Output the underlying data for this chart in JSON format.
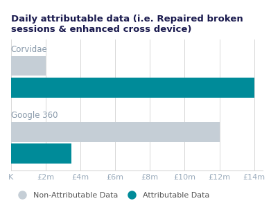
{
  "title": "Daily attributable data (i.e. Repaired broken\nsessions & enhanced cross device)",
  "title_fontsize": 9.5,
  "title_color": "#1a1a4e",
  "groups": [
    "Corvidae",
    "Google 360"
  ],
  "non_attributable": [
    2000000,
    12000000
  ],
  "attributable": [
    14000000,
    3500000
  ],
  "bar_color_non": "#c5ced6",
  "bar_color_attr": "#008b99",
  "xticks": [
    0,
    2000000,
    4000000,
    6000000,
    8000000,
    10000000,
    12000000,
    14000000
  ],
  "xticklabels": [
    "K",
    "£2m",
    "£4m",
    "£6m",
    "£8m",
    "£10m",
    "£12m",
    "£14m"
  ],
  "xlim": [
    0,
    14500000
  ],
  "legend_non": "Non-Attributable Data",
  "legend_attr": "Attributable Data",
  "background_color": "#ffffff",
  "grid_color": "#d8d8d8",
  "label_fontsize": 8.5,
  "label_color": "#8899aa",
  "tick_fontsize": 8,
  "tick_color": "#99aabb"
}
